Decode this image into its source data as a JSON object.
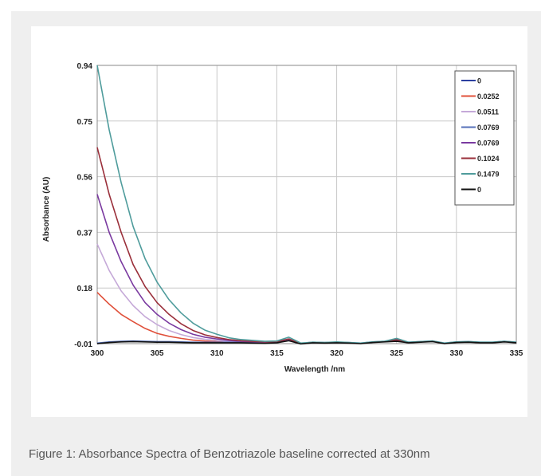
{
  "caption": "Figure 1: Absorbance Spectra of Benzotriazole baseline corrected at 330nm",
  "chart_data": {
    "type": "line",
    "xlabel": "Wavelength /nm",
    "ylabel": "Absorbance (AU)",
    "xlim": [
      300,
      335
    ],
    "ylim": [
      -0.01,
      0.94
    ],
    "xticks": [
      300,
      305,
      310,
      315,
      320,
      325,
      330,
      335
    ],
    "xtick_labels": [
      "300",
      "305",
      "310",
      "315",
      "320",
      "325",
      "330",
      "335"
    ],
    "yticks": [
      -0.01,
      0.18,
      0.37,
      0.56,
      0.75,
      0.94
    ],
    "ytick_labels": [
      "-0.01",
      "0.18",
      "0.37",
      "0.56",
      "0.75",
      "0.94"
    ],
    "grid": true,
    "legend_position": "top-right",
    "x": [
      300,
      301,
      302,
      303,
      304,
      305,
      306,
      307,
      308,
      309,
      310,
      311,
      312,
      313,
      314,
      315,
      316,
      317,
      318,
      319,
      320,
      321,
      322,
      323,
      324,
      325,
      326,
      327,
      328,
      329,
      330,
      331,
      332,
      333,
      334,
      335
    ],
    "series": [
      {
        "name": "0",
        "color": "#2b3fa0",
        "values": [
          -0.01,
          -0.005,
          -0.003,
          -0.002,
          -0.003,
          -0.004,
          -0.004,
          -0.005,
          -0.006,
          -0.006,
          -0.006,
          -0.006,
          -0.006,
          -0.007,
          -0.008,
          -0.006,
          0.004,
          -0.01,
          -0.006,
          -0.007,
          -0.006,
          -0.007,
          -0.009,
          -0.005,
          -0.003,
          0.0,
          -0.006,
          -0.004,
          -0.002,
          -0.009,
          -0.005,
          -0.004,
          -0.006,
          -0.006,
          -0.003,
          -0.006
        ]
      },
      {
        "name": "0.0252",
        "color": "#e0503a",
        "values": [
          0.165,
          0.125,
          0.09,
          0.065,
          0.042,
          0.025,
          0.015,
          0.008,
          0.002,
          -0.001,
          -0.003,
          -0.005,
          -0.006,
          -0.007,
          -0.008,
          -0.006,
          0.002,
          -0.01,
          -0.006,
          -0.007,
          -0.006,
          -0.007,
          -0.009,
          -0.005,
          -0.003,
          0.0,
          -0.006,
          -0.004,
          -0.002,
          -0.009,
          -0.005,
          -0.004,
          -0.006,
          -0.006,
          -0.003,
          -0.006
        ]
      },
      {
        "name": "0.0511",
        "color": "#c5a9d8",
        "values": [
          0.33,
          0.24,
          0.17,
          0.12,
          0.082,
          0.055,
          0.035,
          0.021,
          0.011,
          0.005,
          0.001,
          -0.002,
          -0.004,
          -0.005,
          -0.006,
          -0.005,
          0.004,
          -0.01,
          -0.006,
          -0.007,
          -0.006,
          -0.007,
          -0.009,
          -0.005,
          -0.003,
          0.001,
          -0.006,
          -0.004,
          -0.002,
          -0.009,
          -0.005,
          -0.004,
          -0.006,
          -0.006,
          -0.003,
          -0.006
        ]
      },
      {
        "name": "0.0769",
        "color": "#5570b8",
        "values": [
          -0.008,
          -0.004,
          -0.002,
          -0.001,
          -0.002,
          -0.003,
          -0.003,
          -0.004,
          -0.005,
          -0.005,
          -0.005,
          -0.005,
          -0.005,
          -0.006,
          -0.007,
          -0.005,
          0.006,
          -0.009,
          -0.005,
          -0.006,
          -0.005,
          -0.006,
          -0.008,
          -0.004,
          -0.002,
          0.004,
          -0.005,
          -0.003,
          -0.001,
          -0.008,
          -0.004,
          -0.003,
          -0.005,
          -0.005,
          -0.002,
          -0.005
        ]
      },
      {
        "name": "0.0769",
        "color": "#7a3aa0",
        "values": [
          0.5,
          0.37,
          0.27,
          0.19,
          0.13,
          0.09,
          0.06,
          0.038,
          0.022,
          0.012,
          0.006,
          0.001,
          -0.002,
          -0.004,
          -0.005,
          -0.004,
          0.005,
          -0.01,
          -0.006,
          -0.007,
          -0.006,
          -0.007,
          -0.009,
          -0.005,
          -0.003,
          0.002,
          -0.006,
          -0.004,
          -0.002,
          -0.009,
          -0.005,
          -0.004,
          -0.006,
          -0.006,
          -0.003,
          -0.006
        ]
      },
      {
        "name": "0.1024",
        "color": "#9a2f3a",
        "values": [
          0.66,
          0.5,
          0.37,
          0.26,
          0.185,
          0.13,
          0.09,
          0.058,
          0.035,
          0.02,
          0.011,
          0.004,
          0.0,
          -0.002,
          -0.004,
          -0.003,
          0.006,
          -0.01,
          -0.006,
          -0.007,
          -0.006,
          -0.007,
          -0.009,
          -0.005,
          -0.003,
          0.003,
          -0.006,
          -0.004,
          -0.002,
          -0.009,
          -0.005,
          -0.004,
          -0.006,
          -0.006,
          -0.003,
          -0.006
        ]
      },
      {
        "name": "0.1479",
        "color": "#4f9c9c",
        "values": [
          0.94,
          0.72,
          0.54,
          0.39,
          0.28,
          0.2,
          0.14,
          0.095,
          0.06,
          0.036,
          0.022,
          0.01,
          0.004,
          0.001,
          -0.002,
          -0.001,
          0.012,
          -0.008,
          -0.005,
          -0.006,
          -0.004,
          -0.006,
          -0.008,
          -0.004,
          -0.002,
          0.008,
          -0.005,
          -0.003,
          -0.001,
          -0.008,
          -0.004,
          -0.003,
          -0.005,
          -0.005,
          -0.002,
          -0.005
        ]
      },
      {
        "name": "0",
        "color": "#111111",
        "values": [
          -0.01,
          -0.006,
          -0.004,
          -0.003,
          -0.004,
          -0.005,
          -0.005,
          -0.006,
          -0.007,
          -0.007,
          -0.007,
          -0.007,
          -0.007,
          -0.008,
          -0.009,
          -0.007,
          0.0,
          -0.011,
          -0.007,
          -0.008,
          -0.007,
          -0.008,
          -0.01,
          -0.006,
          -0.004,
          -0.002,
          -0.007,
          -0.005,
          -0.003,
          -0.01,
          -0.006,
          -0.005,
          -0.007,
          -0.007,
          -0.004,
          -0.007
        ]
      }
    ]
  }
}
